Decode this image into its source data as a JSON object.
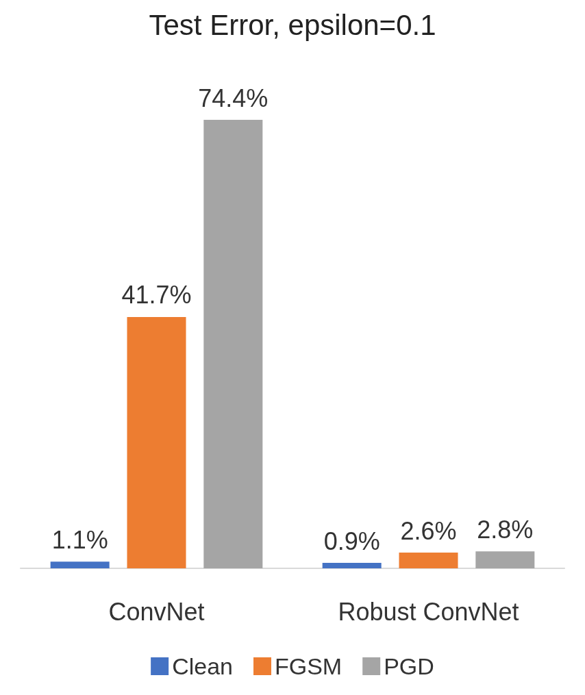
{
  "chart_data": {
    "type": "bar",
    "title": "Test Error, epsilon=0.1",
    "categories": [
      "ConvNet",
      "Robust ConvNet"
    ],
    "series": [
      {
        "name": "Clean",
        "color": "#4472c4",
        "values": [
          1.1,
          0.9
        ],
        "value_labels": [
          "1.1%",
          "0.9%"
        ]
      },
      {
        "name": "FGSM",
        "color": "#ed7d31",
        "values": [
          41.7,
          2.6
        ],
        "value_labels": [
          "41.7%",
          "2.6%"
        ]
      },
      {
        "name": "PGD",
        "color": "#a5a5a5",
        "values": [
          74.4,
          2.8
        ],
        "value_labels": [
          "74.4%",
          "2.8%"
        ]
      }
    ],
    "legend": "bottom",
    "grid": false
  }
}
